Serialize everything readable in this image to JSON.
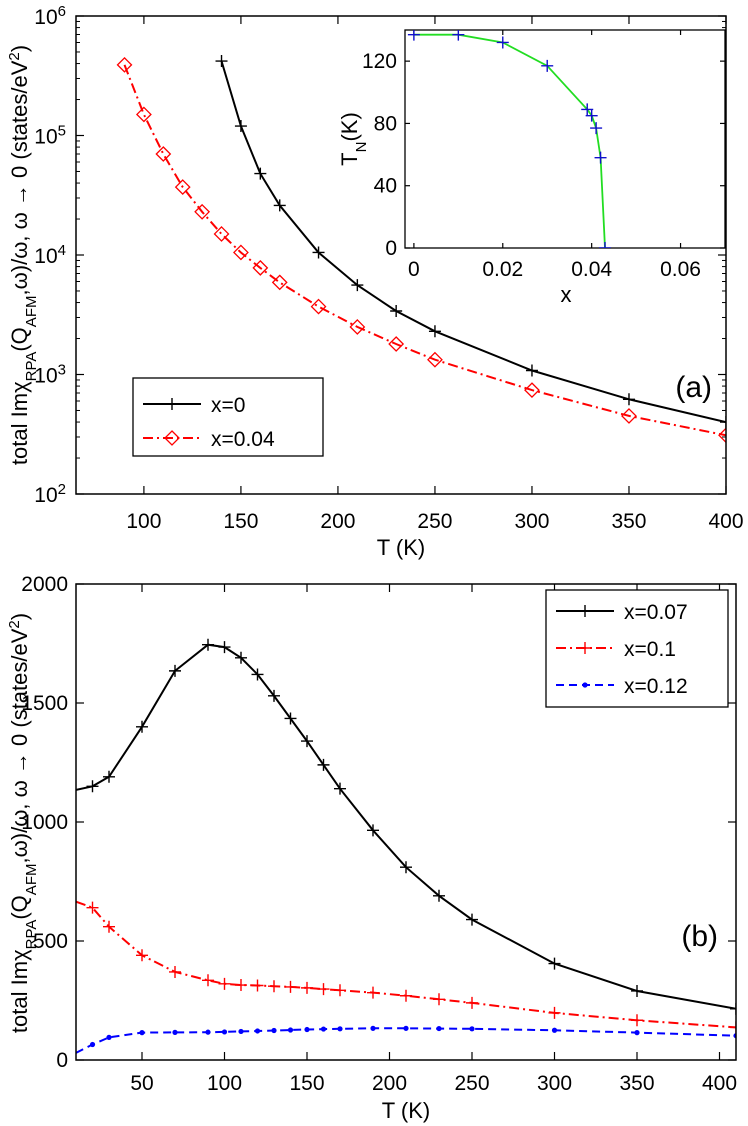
{
  "chart_data": [
    {
      "id": "a",
      "type": "line",
      "yscale": "log",
      "panel_label": "(a)",
      "xlabel": "T (K)",
      "ylabel": "total ImχRPA(QAFM,ω)/ω, ω → 0 (states/eV2)",
      "ylabel_parts": {
        "pre": "total Imχ",
        "sub1": "RPA",
        "mid": "(Q",
        "sub2": "AFM",
        "post": ",ω)/ω, ω → 0 (states/eV",
        "sup": "2",
        "end": ")"
      },
      "xlim": [
        65,
        400
      ],
      "ylim": [
        100,
        1000000
      ],
      "xticks": [
        100,
        150,
        200,
        250,
        300,
        350,
        400
      ],
      "yticks": [
        100,
        1000,
        10000,
        100000,
        1000000
      ],
      "ytick_labels": [
        {
          "base": "10",
          "exp": "2"
        },
        {
          "base": "10",
          "exp": "3"
        },
        {
          "base": "10",
          "exp": "4"
        },
        {
          "base": "10",
          "exp": "5"
        },
        {
          "base": "10",
          "exp": "6"
        }
      ],
      "legend_position": "lower-left",
      "series": [
        {
          "name": "x=0",
          "color": "#000000",
          "dash": "solid",
          "marker": "plus",
          "x": [
            140,
            150,
            160,
            170,
            190,
            210,
            230,
            250,
            300,
            350,
            400
          ],
          "y": [
            420000,
            120000,
            48000,
            26000,
            10500,
            5600,
            3400,
            2300,
            1080,
            620,
            400
          ]
        },
        {
          "name": "x=0.04",
          "color": "#ff0000",
          "dash": "dashdot",
          "marker": "diamond",
          "x": [
            90,
            100,
            110,
            120,
            130,
            140,
            150,
            160,
            170,
            190,
            210,
            230,
            250,
            300,
            350,
            400
          ],
          "y": [
            390000,
            150000,
            70000,
            37000,
            23000,
            15000,
            10500,
            7800,
            5900,
            3700,
            2500,
            1800,
            1330,
            740,
            450,
            310
          ]
        }
      ],
      "inset": {
        "type": "line",
        "xlabel": "x",
        "ylabel_main": "T",
        "ylabel_sub": "N",
        "ylabel_post": "(K)",
        "xlim": [
          -0.002,
          0.07
        ],
        "ylim": [
          0,
          140
        ],
        "xticks": [
          0,
          0.02,
          0.04,
          0.06
        ],
        "xtick_labels": [
          "0",
          "0.02",
          "0.04",
          "0.06"
        ],
        "yticks": [
          0,
          40,
          80,
          120
        ],
        "series": [
          {
            "name": "T_N(x)",
            "color": "#22dd22",
            "marker_color": "#1010cc",
            "marker": "plus",
            "x": [
              0,
              0.01,
              0.02,
              0.03,
              0.039,
              0.04,
              0.041,
              0.042,
              0.043
            ],
            "y": [
              137,
              137,
              132,
              117,
              89,
              85,
              77,
              58,
              0
            ]
          }
        ]
      }
    },
    {
      "id": "b",
      "type": "line",
      "yscale": "linear",
      "panel_label": "(b)",
      "xlabel": "T (K)",
      "ylabel": "total ImχRPA(QAFM,ω)/ω, ω → 0 (states/eV2)",
      "ylabel_parts": {
        "pre": "total Imχ",
        "sub1": "RPA",
        "mid": "(Q",
        "sub2": "AFM",
        "post": ",ω)/ω, ω → 0 (states/eV",
        "sup": "2",
        "end": ")"
      },
      "xlim": [
        10,
        410
      ],
      "ylim": [
        0,
        2000
      ],
      "xticks": [
        50,
        100,
        150,
        200,
        250,
        300,
        350,
        400
      ],
      "yticks": [
        0,
        500,
        1000,
        1500,
        2000
      ],
      "legend_position": "top-right",
      "series": [
        {
          "name": "x=0.07",
          "color": "#000000",
          "dash": "solid",
          "marker": "plus",
          "x": [
            10,
            20,
            30,
            50,
            70,
            90,
            100,
            110,
            120,
            130,
            140,
            150,
            160,
            170,
            190,
            210,
            230,
            250,
            300,
            350,
            410
          ],
          "y": [
            1135,
            1150,
            1190,
            1400,
            1635,
            1745,
            1735,
            1690,
            1620,
            1530,
            1435,
            1340,
            1240,
            1140,
            965,
            810,
            690,
            590,
            405,
            290,
            215
          ],
          "marked_from": 1
        },
        {
          "name": "x=0.1",
          "color": "#ff0000",
          "dash": "dashdot",
          "marker": "plus",
          "x": [
            10,
            20,
            30,
            50,
            70,
            90,
            100,
            110,
            120,
            130,
            140,
            150,
            160,
            170,
            190,
            210,
            230,
            250,
            300,
            350,
            410
          ],
          "y": [
            665,
            640,
            560,
            440,
            370,
            335,
            320,
            315,
            313,
            310,
            307,
            303,
            298,
            293,
            283,
            270,
            255,
            240,
            198,
            167,
            137
          ],
          "marked_from": 1
        },
        {
          "name": "x=0.12",
          "color": "#0000ff",
          "dash": "dashed",
          "marker": "dot",
          "x": [
            10,
            20,
            30,
            50,
            70,
            90,
            100,
            110,
            120,
            130,
            140,
            150,
            160,
            170,
            190,
            210,
            230,
            250,
            300,
            350,
            410
          ],
          "y": [
            30,
            65,
            95,
            115,
            116,
            117,
            118,
            120,
            122,
            124,
            126,
            128,
            130,
            131,
            133,
            133,
            132,
            131,
            125,
            115,
            102
          ],
          "marked_from": 1
        }
      ]
    }
  ]
}
